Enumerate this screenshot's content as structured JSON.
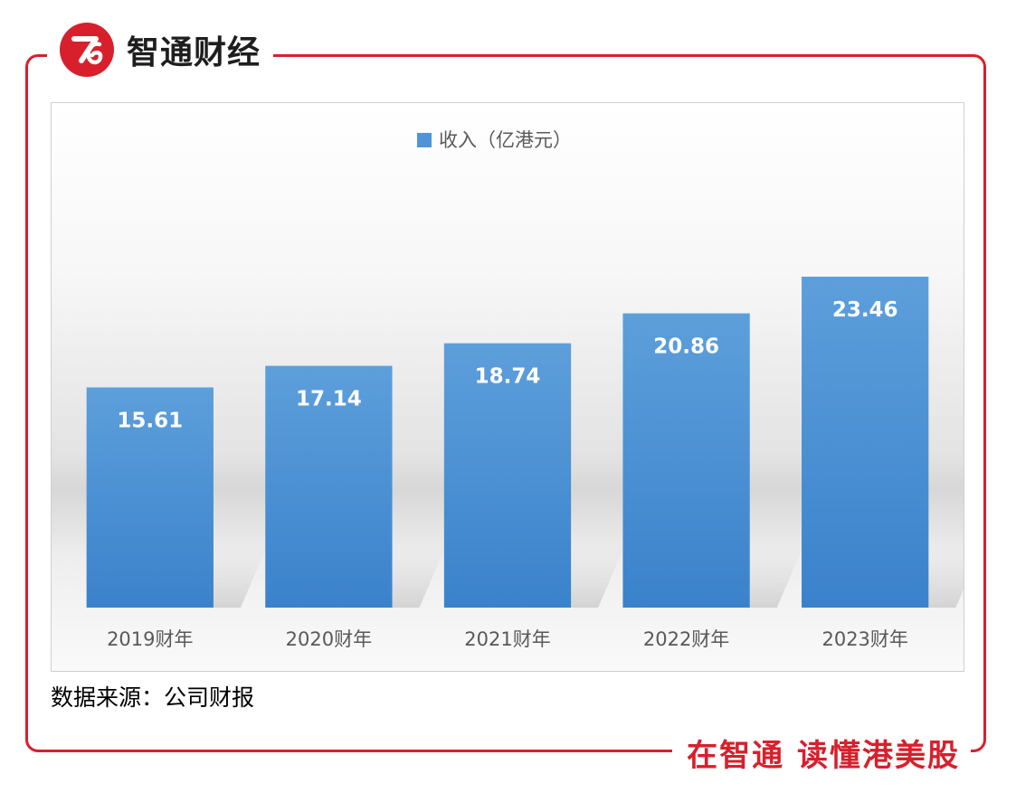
{
  "brand": {
    "logo_icon": "zhitong-logo-icon",
    "name": "智通财经",
    "slogan": "在智通 读懂港美股",
    "color": "#d7202c"
  },
  "source_note": "数据来源：公司财报",
  "chart_data": {
    "type": "bar",
    "title": "",
    "legend": {
      "position": "top-center",
      "entries": [
        "收入（亿港元）"
      ]
    },
    "xlabel": "",
    "ylabel": "",
    "ylim": [
      0,
      30
    ],
    "grid": false,
    "bar_color": "#4f94d6",
    "categories": [
      "2019财年",
      "2020财年",
      "2021财年",
      "2022财年",
      "2023财年"
    ],
    "series": [
      {
        "name": "收入（亿港元）",
        "values": [
          15.61,
          17.14,
          18.74,
          20.86,
          23.46
        ],
        "data_labels": [
          "15.61",
          "17.14",
          "18.74",
          "20.86",
          "23.46"
        ]
      }
    ]
  }
}
